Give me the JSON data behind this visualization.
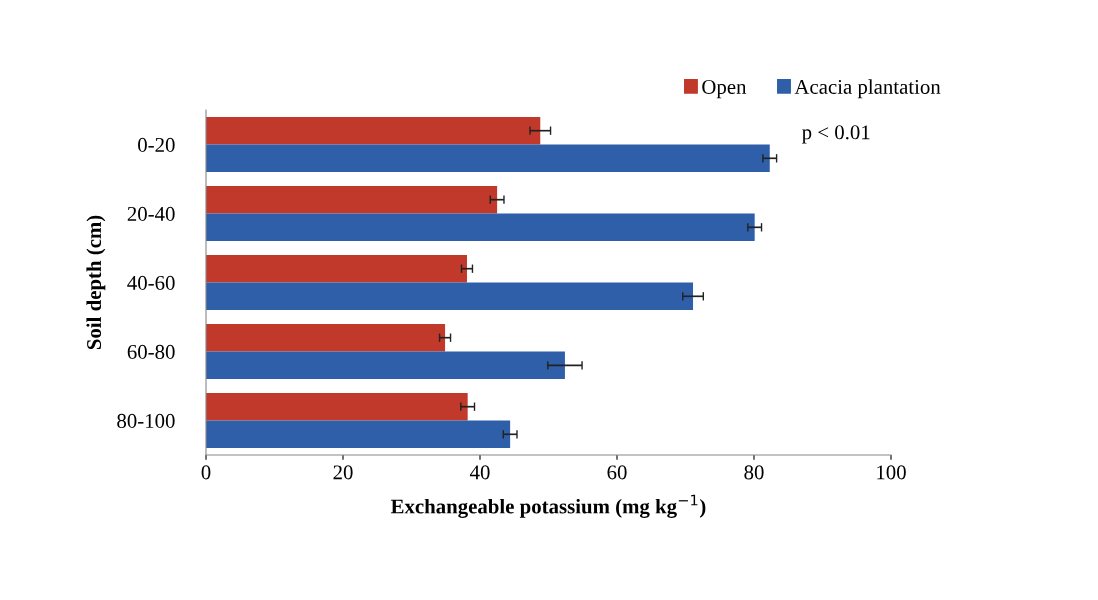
{
  "chart_data": {
    "type": "bar",
    "orientation": "horizontal",
    "xlabel": "Exchangeable potassium (mg kg$^{−1}$)",
    "ylabel": "Soil depth (cm)",
    "categories": [
      "0-20",
      "20-40",
      "40-60",
      "60-80",
      "80-100"
    ],
    "series": [
      {
        "name": "Open",
        "color": "#c0392b",
        "values": [
          48.8,
          42.5,
          38.1,
          34.9,
          38.2
        ],
        "errors": [
          1.5,
          1,
          0.8,
          0.8,
          1
        ]
      },
      {
        "name": "Acacia plantation",
        "color": "#2e5fa8",
        "values": [
          82.3,
          80.1,
          71.1,
          52.4,
          44.4
        ],
        "errors": [
          1,
          1,
          1.5,
          2.5,
          1
        ]
      }
    ],
    "xlim": [
      0,
      100
    ],
    "xticks": [
      0,
      20,
      40,
      60,
      80,
      100
    ],
    "grid": false,
    "legend": "top right",
    "annotations": [
      "p < 0.01"
    ]
  }
}
